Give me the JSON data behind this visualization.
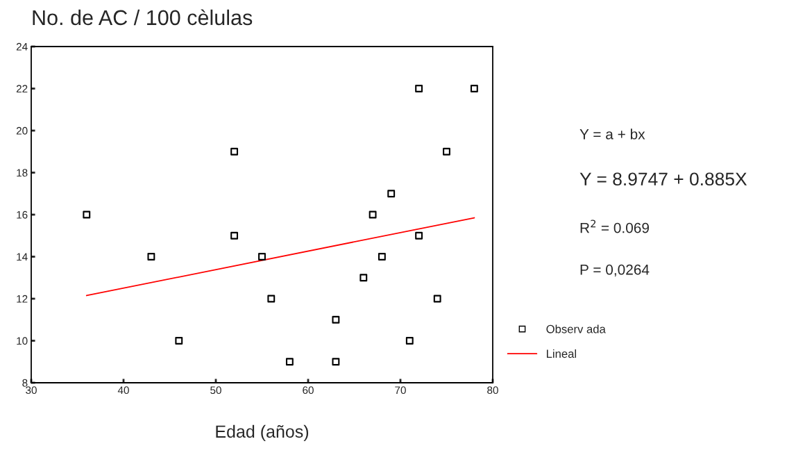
{
  "chart_data": {
    "type": "scatter",
    "title": "No. de AC / 100 cèlulas",
    "xlabel": "Edad (años)",
    "xlim": [
      30,
      80
    ],
    "xticks": [
      30,
      40,
      50,
      60,
      70,
      80
    ],
    "ylim": [
      8,
      24
    ],
    "yticks": [
      8,
      10,
      12,
      14,
      16,
      18,
      20,
      22,
      24
    ],
    "grid": false,
    "legend": "right",
    "series": [
      {
        "name": "Observ ada",
        "marker": "square",
        "color": "#000000",
        "x": [
          36,
          43,
          46,
          52,
          52,
          55,
          56,
          58,
          63,
          63,
          66,
          67,
          68,
          69,
          71,
          72,
          72,
          74,
          75,
          78
        ],
        "values": [
          16,
          14,
          10,
          19,
          15,
          14,
          12,
          9,
          11,
          9,
          13,
          16,
          14,
          17,
          10,
          22,
          15,
          12,
          19,
          22
        ]
      },
      {
        "name": "Lineal",
        "type": "line",
        "marker": "none",
        "color": "#ff0000",
        "x": [
          36,
          78
        ],
        "values": [
          12.15,
          15.85
        ]
      }
    ],
    "annotations": [
      "Y = a + bx",
      "Y = 8.9747 + 0.885X",
      "R$^{2}$ = 0.069",
      "P = 0,0264"
    ]
  }
}
